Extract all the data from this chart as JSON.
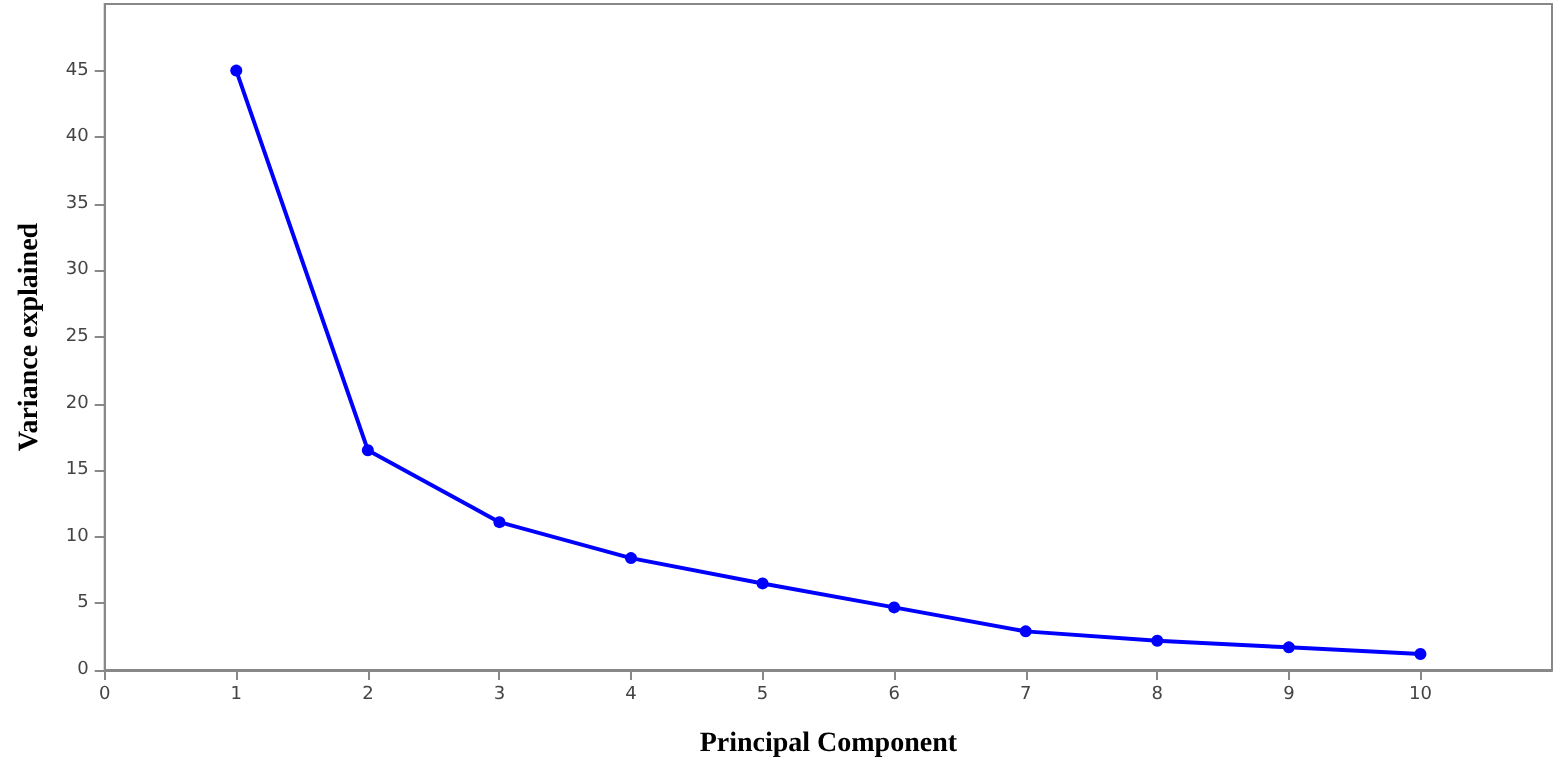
{
  "chart_data": {
    "type": "line",
    "xlabel": "Principal Component",
    "ylabel": "Variance explained",
    "x": [
      1,
      2,
      3,
      4,
      5,
      6,
      7,
      8,
      9,
      10
    ],
    "series": [
      {
        "color": "#0000ff",
        "values": [
          45,
          16.5,
          11.1,
          8.4,
          6.5,
          4.7,
          2.9,
          2.2,
          1.7,
          1.2
        ]
      }
    ],
    "xlim": [
      0,
      11
    ],
    "xticks": [
      0,
      1,
      2,
      3,
      4,
      5,
      6,
      7,
      8,
      9,
      10
    ],
    "ylim": [
      0,
      50
    ],
    "yticks": [
      0,
      5,
      10,
      15,
      20,
      25,
      30,
      35,
      40,
      45
    ],
    "grid": false,
    "marker": "circle",
    "line_style": "solid"
  }
}
